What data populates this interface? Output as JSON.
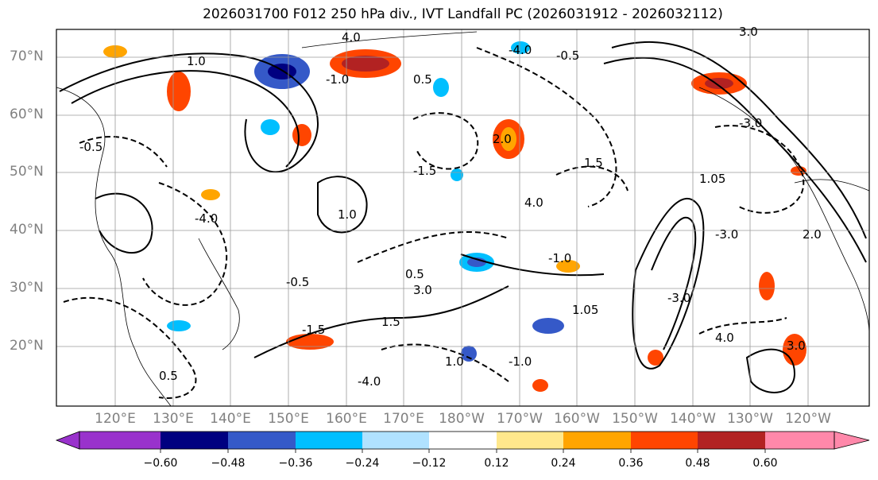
{
  "title": "2026031700 F012 250 hPa div., IVT Landfall PC (2026031912 - 2026032112)",
  "map": {
    "projection": "PlateCarree",
    "lat_labels": [
      "70°N",
      "60°N",
      "50°N",
      "40°N",
      "30°N",
      "20°N"
    ],
    "lon_labels": [
      "120°E",
      "130°E",
      "140°E",
      "150°E",
      "160°E",
      "170°E",
      "180°W",
      "170°W",
      "160°W",
      "150°W",
      "140°W",
      "130°W",
      "120°W"
    ],
    "contour_labels": [
      "4.0",
      "-4.0",
      "1.0",
      "-1.0",
      "0.5",
      "-0.5",
      "3.0",
      "-3.0",
      "2.0",
      "1.5",
      "-1.5",
      "1.05"
    ],
    "gridlines": true,
    "coastlines": true
  },
  "colorbar": {
    "ticks": [
      "−0.60",
      "−0.48",
      "−0.36",
      "−0.24",
      "−0.12",
      "0.12",
      "0.24",
      "0.36",
      "0.48",
      "0.60"
    ],
    "colors": [
      "#9932cc",
      "#000080",
      "#3559c8",
      "#00bfff",
      "#b0e2ff",
      "#ffffff",
      "#ffe88c",
      "#ffa500",
      "#ff4500",
      "#b22222",
      "#ff88aa"
    ],
    "extend": "both"
  }
}
